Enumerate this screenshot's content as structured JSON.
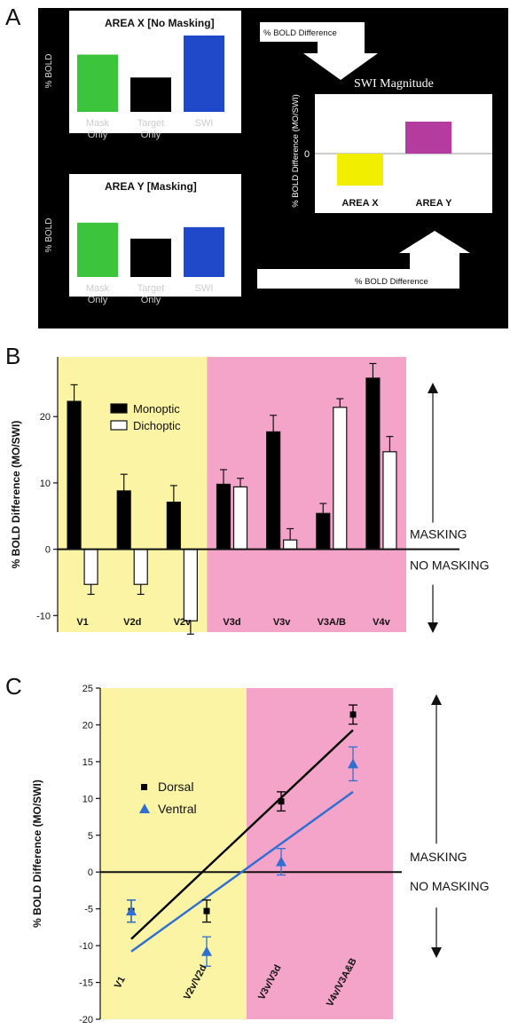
{
  "panels": {
    "a": "A",
    "b": "B",
    "c": "C"
  },
  "chart_data": [
    {
      "panel": "A",
      "type": "bar",
      "subcharts": [
        {
          "title": "AREA X [No Masking]",
          "ylabel": "% BOLD",
          "categories": [
            "Mask Only",
            "Target Only",
            "SWI"
          ],
          "values": [
            0.75,
            0.45,
            1.0
          ],
          "colors": [
            "#3cc43c",
            "#000000",
            "#1f49c9"
          ]
        },
        {
          "title": "AREA Y [Masking]",
          "ylabel": "% BOLD",
          "categories": [
            "Mask Only",
            "Target Only",
            "SWI"
          ],
          "values": [
            0.85,
            0.6,
            0.78
          ],
          "colors": [
            "#3cc43c",
            "#000000",
            "#1f49c9"
          ]
        },
        {
          "title": "SWI Magnitude",
          "ylabel": "% BOLD Difference (MO/SWI)",
          "zero_label": "0",
          "categories": [
            "AREA X",
            "AREA Y"
          ],
          "values": [
            -1.0,
            1.0
          ],
          "colors": [
            "#f1ee00",
            "#b43c9e"
          ]
        }
      ],
      "arrow_labels": [
        "% BOLD Difference",
        "% BOLD Difference"
      ]
    },
    {
      "panel": "B",
      "type": "bar",
      "ylabel": "% BOLD Difference (MO/SWI)",
      "categories": [
        "V1",
        "V2d",
        "V2v",
        "V3d",
        "V3v",
        "V3A/B",
        "V4v"
      ],
      "series": [
        {
          "name": "Monoptic",
          "color": "#000000",
          "values": [
            22.3,
            8.8,
            7.1,
            9.8,
            17.7,
            5.4,
            25.8
          ],
          "errors": [
            2.5,
            2.5,
            2.5,
            2.2,
            2.5,
            1.5,
            2.2
          ]
        },
        {
          "name": "Dichoptic",
          "color": "#ffffff",
          "values": [
            -5.3,
            -5.3,
            -10.8,
            9.4,
            1.4,
            21.4,
            14.7
          ],
          "errors": [
            1.5,
            1.5,
            2.0,
            1.3,
            1.7,
            1.3,
            2.3
          ]
        }
      ],
      "ylim": [
        -12.5,
        29
      ],
      "yticks": [
        -10,
        0,
        10,
        20
      ],
      "regions": [
        {
          "from": 0,
          "to": 3,
          "color": "#fbf4a5"
        },
        {
          "from": 3,
          "to": 7,
          "color": "#f4a3c9"
        }
      ],
      "annotations": [
        "MASKING",
        "NO MASKING"
      ]
    },
    {
      "panel": "C",
      "type": "scatter",
      "ylabel": "% BOLD Difference (MO/SWI)",
      "categories": [
        "V1",
        "V2v/V2d",
        "V3v/V3d",
        "V4v/V3A&B"
      ],
      "ylim": [
        -20,
        25
      ],
      "yticks": [
        -20,
        -15,
        -10,
        -5,
        0,
        5,
        10,
        15,
        20,
        25
      ],
      "series": [
        {
          "name": "Dorsal",
          "marker": "square",
          "color": "#000000",
          "values": [
            -5.3,
            -5.3,
            9.6,
            21.4
          ],
          "errors": [
            1.5,
            1.5,
            1.3,
            1.3
          ],
          "fit": [
            -9.1,
            19.3
          ]
        },
        {
          "name": "Ventral",
          "marker": "triangle",
          "color": "#2e6fd1",
          "values": [
            -5.3,
            -10.8,
            1.4,
            14.7
          ],
          "errors": [
            1.5,
            2.0,
            1.8,
            2.3
          ],
          "fit": [
            -10.8,
            10.9
          ]
        }
      ],
      "regions": [
        {
          "from": 0,
          "to": 2,
          "color": "#fbf4a5"
        },
        {
          "from": 2,
          "to": 4,
          "color": "#f4a3c9"
        }
      ],
      "annotations": [
        "MASKING",
        "NO MASKING"
      ]
    }
  ]
}
